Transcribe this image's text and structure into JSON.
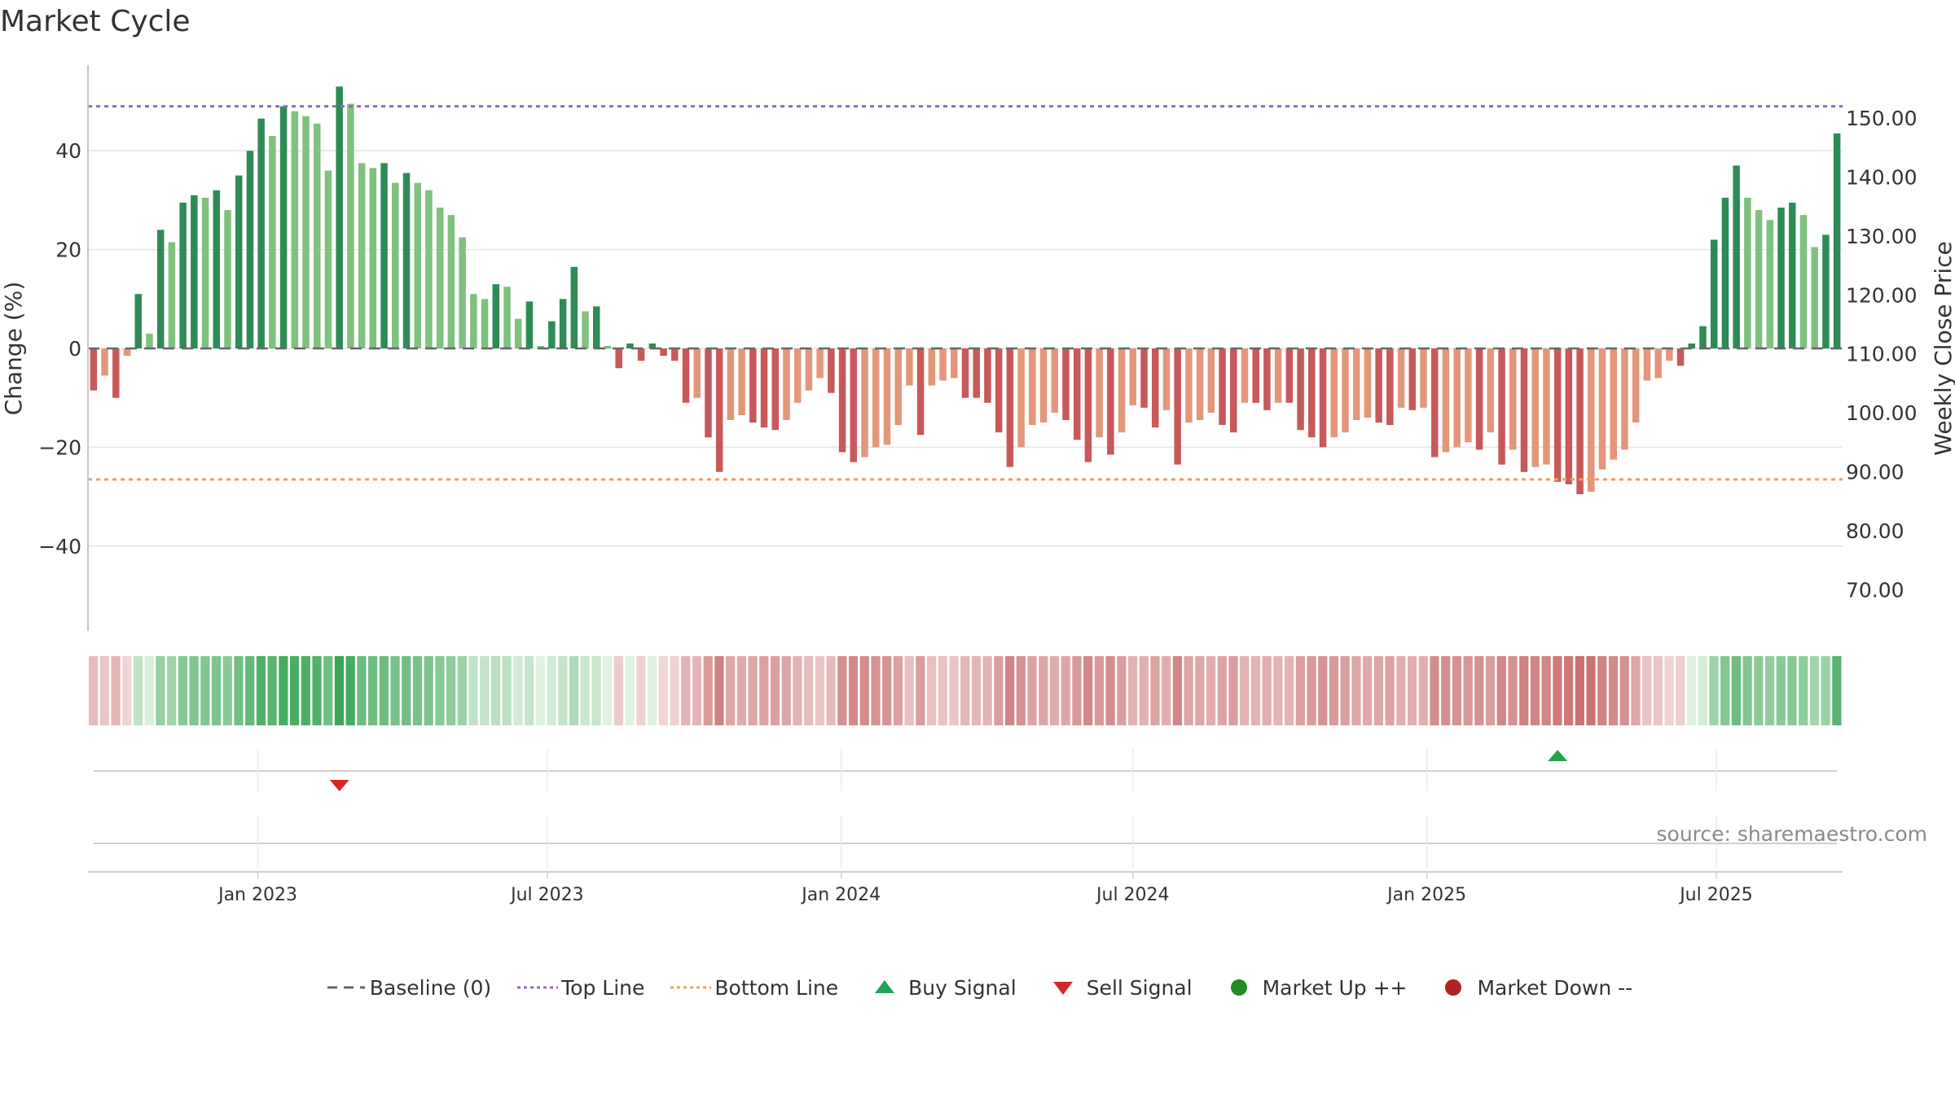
{
  "chart_data": {
    "type": "bar",
    "title": "Market Cycle",
    "ylabel": "Change (%)",
    "y2label": "Weekly Close Price",
    "ylim": [
      -58,
      58
    ],
    "y2lim": [
      63.0,
      159.0
    ],
    "y_ticks": [
      "40",
      "20",
      "0",
      "−20",
      "−40"
    ],
    "y_tick_values": [
      40,
      20,
      0,
      -20,
      -40
    ],
    "y2_ticks": [
      "150.00",
      "140.00",
      "130.00",
      "120.00",
      "110.00",
      "100.00",
      "90.00",
      "80.00",
      "70.00"
    ],
    "y2_tick_values": [
      150,
      140,
      130,
      120,
      110,
      100,
      90,
      80,
      70
    ],
    "x_ticks": [
      "Jan 2023",
      "Jul 2023",
      "Jan 2024",
      "Jul 2024",
      "Jan 2025",
      "Jul 2025"
    ],
    "x_tick_weeks": [
      14.7,
      40.6,
      66.9,
      93.0,
      119.3,
      145.2
    ],
    "reference_lines": {
      "baseline": 0,
      "top_line": 49,
      "bottom_line": -26.5
    },
    "weekly_change": [
      -8.5,
      -5.5,
      -10,
      -1.5,
      11,
      3,
      24,
      21.5,
      29.5,
      31,
      30.5,
      32,
      28,
      35,
      40,
      46.5,
      43,
      49,
      48,
      47,
      45.5,
      36,
      53,
      49.5,
      37.5,
      36.5,
      37.5,
      33.5,
      35.5,
      33.5,
      32,
      28.5,
      27,
      22.5,
      11,
      10,
      13,
      12.5,
      6,
      9.5,
      0.5,
      5.5,
      10,
      16.5,
      7.5,
      8.5,
      0.5,
      -4,
      1,
      -2.5,
      1,
      -1.5,
      -2.5,
      -11,
      -10,
      -18,
      -25,
      -14.5,
      -13.5,
      -15,
      -16,
      -16.5,
      -14.5,
      -11,
      -8.5,
      -6,
      -9,
      -21,
      -23,
      -22,
      -20,
      -19.5,
      -15.5,
      -7.5,
      -17.5,
      -7.5,
      -6.5,
      -6,
      -10,
      -10,
      -11,
      -17,
      -24,
      -20,
      -15.5,
      -15,
      -13,
      -14.5,
      -18.5,
      -23,
      -18,
      -21.5,
      -17,
      -11.5,
      -12,
      -16,
      -12.5,
      -23.5,
      -15,
      -14.5,
      -13,
      -15.5,
      -17,
      -11,
      -11,
      -12.5,
      -11,
      -11,
      -16.5,
      -18,
      -20,
      -18,
      -17,
      -14.5,
      -14,
      -15,
      -15.5,
      -12,
      -12.5,
      -12,
      -22,
      -21,
      -20,
      -19,
      -20.5,
      -17,
      -23.5,
      -20.5,
      -25,
      -24,
      -23.5,
      -27,
      -27.5,
      -29.5,
      -29,
      -24.5,
      -22.5,
      -20.5,
      -15,
      -6.5,
      -6,
      -2.5,
      -3.5,
      1,
      4.5,
      22,
      30.5,
      37,
      30.5,
      28,
      26,
      28.5,
      29.5,
      27,
      20.5,
      23,
      43.5
    ],
    "signals": {
      "sell_signal_week": 22,
      "buy_signal_week": 131
    },
    "colors": {
      "up_strong": "#2e8b57",
      "up_light": "#7fc17f",
      "down_strong": "#c8595a",
      "down_light": "#e3977a",
      "top_line": "#9467bd",
      "bottom_line": "#f0a060",
      "baseline": "#666666",
      "buy": "#22a352",
      "sell": "#d62728",
      "market_up": "#228b22",
      "market_down": "#b22222"
    },
    "legend": [
      "Baseline (0)",
      "Top Line",
      "Bottom Line",
      "Buy Signal",
      "Sell Signal",
      "Market Up ++",
      "Market Down --"
    ],
    "source": "source: sharemaestro.com"
  }
}
